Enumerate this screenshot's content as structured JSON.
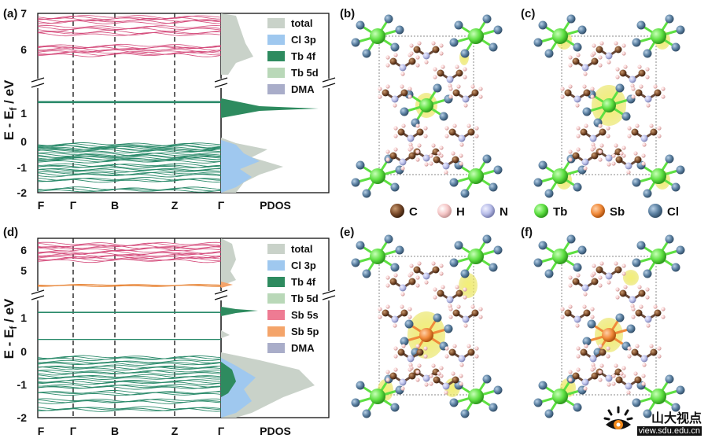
{
  "figure": {
    "panel_labels": [
      "(a)",
      "(b)",
      "(c)",
      "(d)",
      "(e)",
      "(f)"
    ],
    "band_kpoints": [
      "F",
      "Γ",
      "B",
      "Z",
      "Γ"
    ],
    "pdos_label": "PDOS",
    "y_axis_label_main": "E - E",
    "y_axis_label_sub": "f",
    "y_axis_label_unit": " / eV"
  },
  "colors": {
    "conduction_band": "#d44a7a",
    "valence_band": "#2a8a6a",
    "tb4f_band": "#2a8a6a",
    "sb_band": "#e8873a",
    "total": "#c9d2c9",
    "cl3p": "#9fc8ef",
    "tb4f": "#2e8b5f",
    "tb5d": "#b9d8b8",
    "dma": "#a9adc9",
    "sb5s": "#ee7b93",
    "sb5p": "#f4a46a",
    "atom_C": "#7a4a2a",
    "atom_H": "#f6c8c8",
    "atom_N": "#b8bde8",
    "atom_Tb": "#5ee042",
    "atom_Sb": "#f08a3a",
    "atom_Cl": "#5a7fa0",
    "isosurface": "#e6e04a"
  },
  "chart_data": [
    {
      "panel": "(a)",
      "type": "line",
      "xlabel": "",
      "ylabel": "E - Ef / eV",
      "x_ticks": [
        "F",
        "Γ",
        "B",
        "Z",
        "Γ"
      ],
      "y_ticks_upper": [
        "7",
        "6"
      ],
      "y_ticks_lower": [
        "1",
        "0",
        "-1",
        "-2"
      ],
      "ylim_upper": [
        5.2,
        7
      ],
      "ylim_lower": [
        -2,
        1.6
      ],
      "bands": {
        "conduction": [
          5.85,
          5.95,
          6.05,
          6.45,
          6.6,
          6.8,
          6.9
        ],
        "tb4f": [
          1.25,
          1.28
        ],
        "valence": [
          -0.25,
          -0.35,
          -0.45,
          -0.6,
          -0.7,
          -0.8,
          -1.0,
          -1.15,
          -1.3,
          -1.5,
          -1.85
        ]
      },
      "pdos_legend": [
        "total",
        "Cl 3p",
        "Tb 4f",
        "Tb 5d",
        "DMA"
      ]
    },
    {
      "panel": "(d)",
      "type": "line",
      "xlabel": "",
      "ylabel": "E - Ef / eV",
      "x_ticks": [
        "F",
        "Γ",
        "B",
        "Z",
        "Γ"
      ],
      "y_ticks_upper": [
        "6",
        "5"
      ],
      "y_ticks_lower": [
        "1",
        "0",
        "-1",
        "-2"
      ],
      "ylim_upper": [
        4.1,
        6.4
      ],
      "ylim_lower": [
        -2,
        1.6
      ],
      "bands": {
        "conduction": [
          5.5,
          5.65,
          5.8,
          6.0,
          6.15
        ],
        "sb": [
          4.3
        ],
        "tb4f": [
          1.3
        ],
        "sb_valence": [
          0.45
        ],
        "valence": [
          -0.1,
          -0.25,
          -0.4,
          -0.55,
          -0.7,
          -0.85,
          -1.0,
          -1.2,
          -1.45,
          -1.7
        ]
      },
      "pdos_legend": [
        "total",
        "Cl 3p",
        "Tb 4f",
        "Tb 5d",
        "Sb 5s",
        "Sb 5p",
        "DMA"
      ]
    }
  ],
  "atom_legend": [
    "C",
    "H",
    "N",
    "Tb",
    "Sb",
    "Cl"
  ],
  "watermark": {
    "title": "山大视点",
    "url": "view.sdu.edu.cn"
  }
}
